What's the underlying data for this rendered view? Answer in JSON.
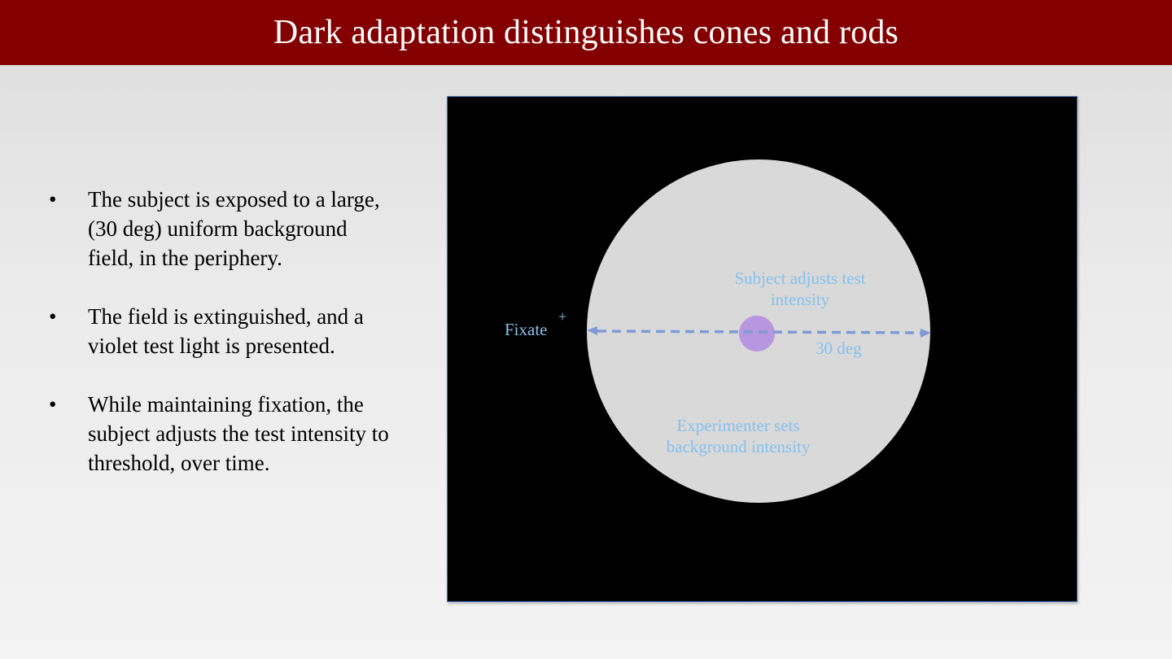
{
  "slide": {
    "title": "Dark adaptation distinguishes cones and rods"
  },
  "bullets": [
    {
      "marker": "•",
      "text": "The subject is exposed to a large, (30 deg) uniform background field, in the periphery."
    },
    {
      "marker": "•",
      "text": "The field is extinguished, and a violet test light is presented."
    },
    {
      "marker": "•",
      "text": "While maintaining fixation, the subject adjusts the test intensity to threshold, over time."
    }
  ],
  "diagram": {
    "fixate_label": "Fixate",
    "fixation_mark": "+",
    "test_label_line1": "Subject adjusts test",
    "test_label_line2": "intensity",
    "size_label": "30 deg",
    "background_label_line1": "Experimenter sets",
    "background_label_line2": "background intensity",
    "colors": {
      "field_background": "#000000",
      "background_field": "#d9d9d9",
      "test_light": "#b48ee0",
      "arrow": "#7f9ad6",
      "label_text": "#86c1ee"
    }
  }
}
